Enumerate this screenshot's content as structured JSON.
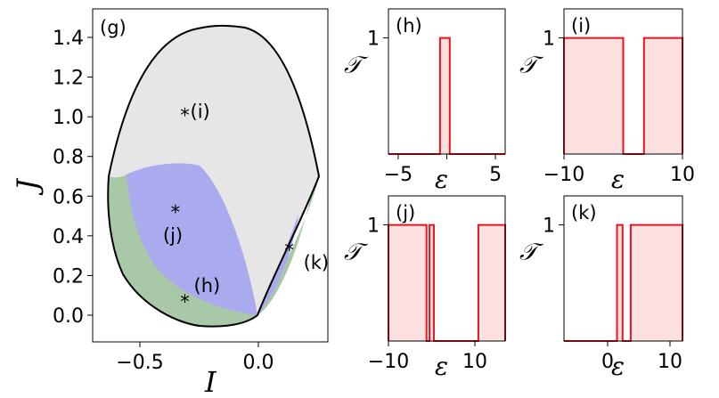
{
  "colors": {
    "gray_region": "#e6e6e6",
    "blue_region": "#aaaaee",
    "green_region": "#a8c8a8",
    "boundary": "#000000",
    "step_line": "#e8141c",
    "step_fill": "#fde0e0"
  },
  "main_panel": {
    "label": "(g)",
    "xlabel": "I",
    "ylabel": "J",
    "xticks": [
      -0.5,
      0.0
    ],
    "xtick_labels": [
      "−0.5",
      "0.0"
    ],
    "yticks": [
      0.0,
      0.2,
      0.4,
      0.6,
      0.8,
      1.0,
      1.2,
      1.4
    ],
    "ytick_labels": [
      "0.0",
      "0.2",
      "0.4",
      "0.6",
      "0.8",
      "1.0",
      "1.2",
      "1.4"
    ],
    "markers": [
      {
        "symbol": "*",
        "text": "(i)",
        "I": -0.31,
        "J": 1.03
      },
      {
        "symbol": "*",
        "text": "(j)",
        "I": -0.35,
        "J": 0.54
      },
      {
        "symbol": "*",
        "text": "(h)",
        "I": -0.31,
        "J": 0.09
      },
      {
        "symbol": "*",
        "text": "(k)",
        "I": 0.13,
        "J": 0.35
      }
    ]
  },
  "chart_data": [
    {
      "type": "area",
      "panel": "(g)",
      "xlabel": "I",
      "ylabel": "J",
      "xlim": [
        -0.86,
        0.36
      ],
      "ylim": [
        -0.07,
        1.52
      ],
      "regions": [
        {
          "color": "gray",
          "description": "outer region bounded by black curve",
          "J_top": 1.46,
          "I_left": -0.82,
          "I_right": 0.32
        },
        {
          "color": "blue",
          "description": "left lobe and right thin lobe"
        },
        {
          "color": "green",
          "description": "lower-left and right edge bands"
        }
      ],
      "markers": [
        {
          "label": "(i)",
          "I": -0.31,
          "J": 1.03
        },
        {
          "label": "(j)",
          "I": -0.35,
          "J": 0.54
        },
        {
          "label": "(h)",
          "I": -0.31,
          "J": 0.09
        },
        {
          "label": "(k)",
          "I": 0.13,
          "J": 0.35
        }
      ]
    },
    {
      "type": "step",
      "panel": "(h)",
      "xlabel": "ε",
      "ylabel": "𝒯",
      "xlim": [
        -6,
        6
      ],
      "ylim": [
        0,
        1.25
      ],
      "xticks": [
        -5,
        0,
        5
      ],
      "xtick_labels": [
        "−5",
        "",
        "5"
      ],
      "ytick_labels": [
        "1"
      ],
      "windows": [
        [
          -0.7,
          0.3
        ]
      ]
    },
    {
      "type": "step",
      "panel": "(i)",
      "xlabel": "ε",
      "ylabel": "𝒯",
      "xlim": [
        -10,
        10
      ],
      "ylim": [
        0,
        1.25
      ],
      "xticks": [
        -10,
        10
      ],
      "xtick_labels": [
        "−10",
        "10"
      ],
      "ytick_labels": [
        "1"
      ],
      "windows": [
        [
          -10,
          0
        ],
        [
          3.5,
          10
        ]
      ]
    },
    {
      "type": "step",
      "panel": "(j)",
      "xlabel": "ε",
      "ylabel": "𝒯",
      "xlim": [
        -10,
        17
      ],
      "ylim": [
        0,
        1.25
      ],
      "xticks": [
        -10,
        10
      ],
      "xtick_labels": [
        "−10",
        "10"
      ],
      "ytick_labels": [
        "1"
      ],
      "windows": [
        [
          -10,
          -1.2
        ],
        [
          -0.5,
          0.5
        ],
        [
          10.8,
          17
        ]
      ]
    },
    {
      "type": "step",
      "panel": "(k)",
      "xlabel": "ε",
      "ylabel": "𝒯",
      "xlim": [
        -7,
        12
      ],
      "ylim": [
        0,
        1.25
      ],
      "xticks": [
        0,
        10
      ],
      "xtick_labels": [
        "0",
        "10"
      ],
      "ytick_labels": [
        "1"
      ],
      "windows": [
        [
          1.5,
          2.4
        ],
        [
          3.7,
          12
        ]
      ]
    }
  ]
}
